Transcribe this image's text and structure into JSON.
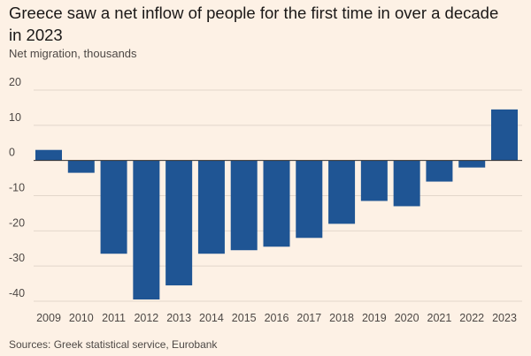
{
  "title": "Greece saw a net inflow of people for the first time in over a decade in 2023",
  "subtitle": "Net migration, thousands",
  "source": "Sources: Greek statistical service, Eurobank",
  "colors": {
    "background": "#fdf1e5",
    "bar": "#1f5594",
    "grid": "#e2d6cb",
    "zero_line": "#33302e"
  },
  "chart_data": {
    "type": "bar",
    "title": "Greece saw a net inflow of people for the first time in over a decade in 2023",
    "subtitle": "Net migration, thousands",
    "categories": [
      "2009",
      "2010",
      "2011",
      "2012",
      "2013",
      "2014",
      "2015",
      "2016",
      "2017",
      "2018",
      "2019",
      "2020",
      "2021",
      "2022",
      "2023"
    ],
    "values": [
      3,
      -3.5,
      -26.5,
      -39.5,
      -35.5,
      -26.5,
      -25.5,
      -24.5,
      -22,
      -18,
      -11.5,
      -13,
      -6,
      -2,
      14.5
    ],
    "y_ticks": [
      20,
      10,
      0,
      -10,
      -20,
      -30,
      -40
    ],
    "ylim": [
      -42,
      20
    ],
    "grid": true,
    "legend": "none"
  }
}
